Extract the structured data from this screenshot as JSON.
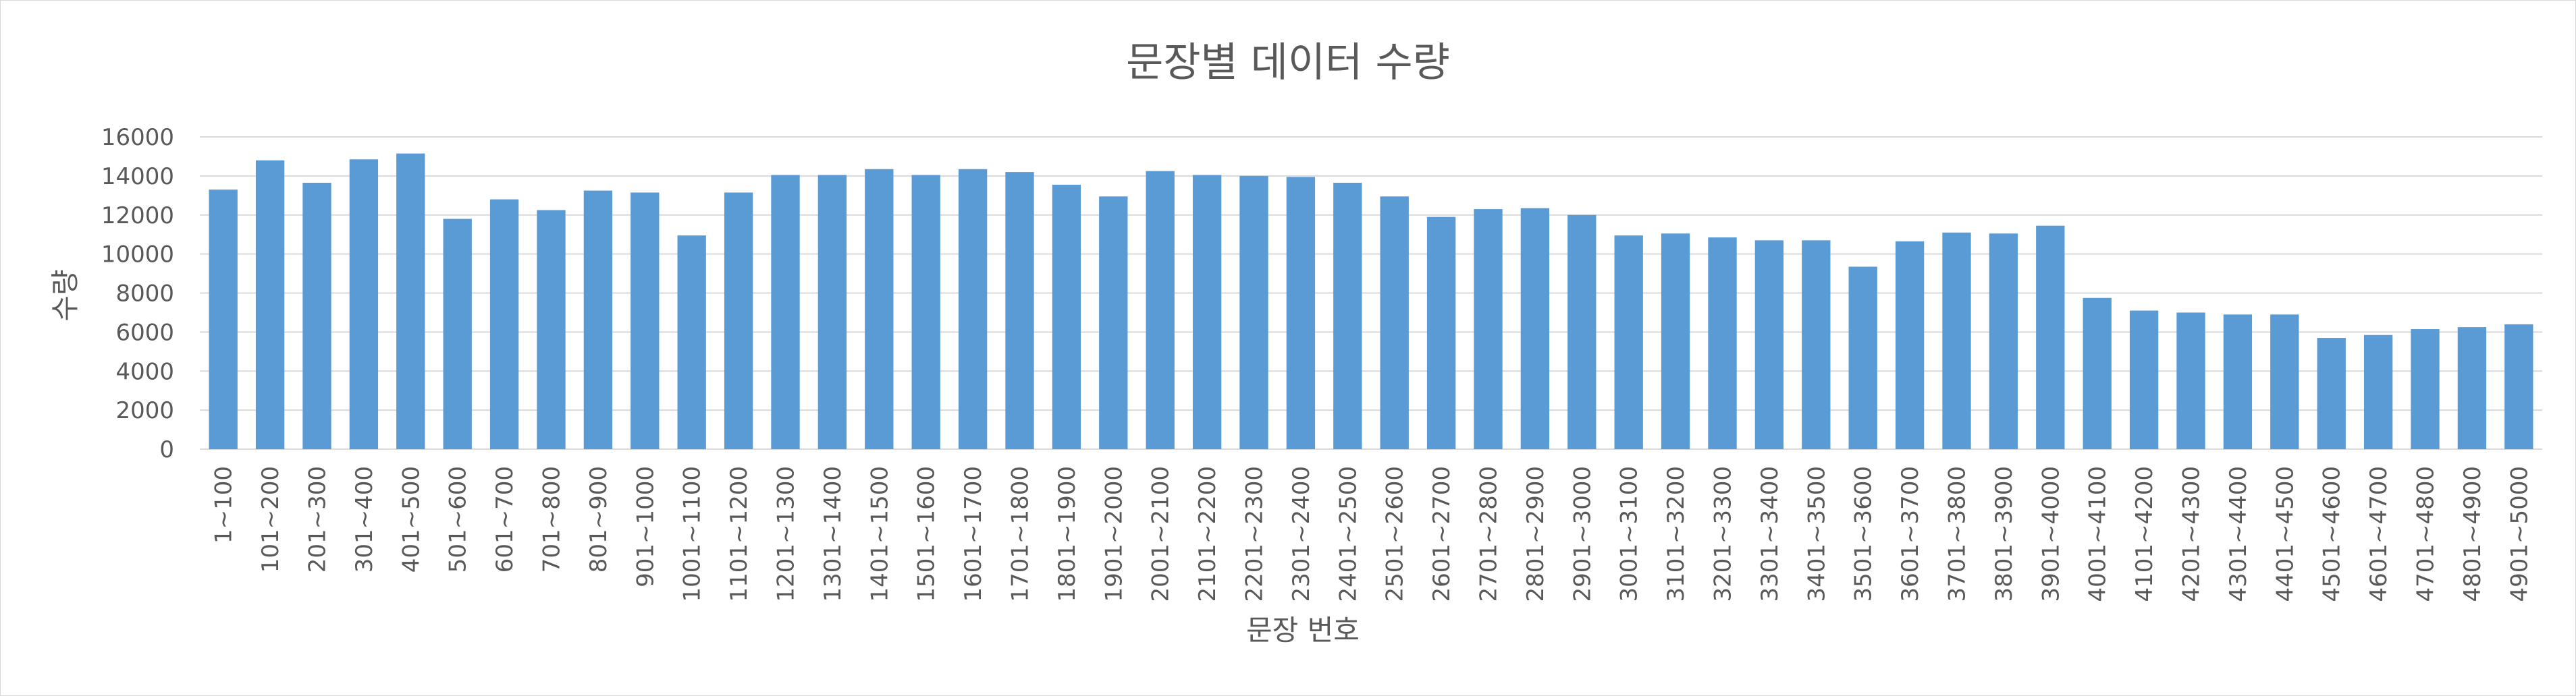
{
  "chart_data": {
    "type": "bar",
    "title": "문장별 데이터 수량",
    "xlabel": "문장 번호",
    "ylabel": "수량",
    "ylim": [
      0,
      16000
    ],
    "yticks": [
      0,
      2000,
      4000,
      6000,
      8000,
      10000,
      12000,
      14000,
      16000
    ],
    "grid": true,
    "legend": "none",
    "bar_color": "#5b9bd5",
    "categories": [
      "1~100",
      "101~200",
      "201~300",
      "301~400",
      "401~500",
      "501~600",
      "601~700",
      "701~800",
      "801~900",
      "901~1000",
      "1001~1100",
      "1101~1200",
      "1201~1300",
      "1301~1400",
      "1401~1500",
      "1501~1600",
      "1601~1700",
      "1701~1800",
      "1801~1900",
      "1901~2000",
      "2001~2100",
      "2101~2200",
      "2201~2300",
      "2301~2400",
      "2401~2500",
      "2501~2600",
      "2601~2700",
      "2701~2800",
      "2801~2900",
      "2901~3000",
      "3001~3100",
      "3101~3200",
      "3201~3300",
      "3301~3400",
      "3401~3500",
      "3501~3600",
      "3601~3700",
      "3701~3800",
      "3801~3900",
      "3901~4000",
      "4001~4100",
      "4101~4200",
      "4201~4300",
      "4301~4400",
      "4401~4500",
      "4501~4600",
      "4601~4700",
      "4701~4800",
      "4801~4900",
      "4901~5000"
    ],
    "values": [
      13300,
      14800,
      13650,
      14850,
      15150,
      11800,
      12800,
      12250,
      13250,
      13150,
      10950,
      13150,
      14050,
      14050,
      14350,
      14050,
      14350,
      14200,
      13550,
      12950,
      14250,
      14050,
      14000,
      13950,
      13650,
      12950,
      11900,
      12300,
      12350,
      12000,
      10950,
      11050,
      10850,
      10700,
      10700,
      9350,
      10650,
      11100,
      11050,
      11450,
      7750,
      7100,
      7000,
      6900,
      6900,
      5700,
      5850,
      6150,
      6250,
      6400
    ]
  }
}
